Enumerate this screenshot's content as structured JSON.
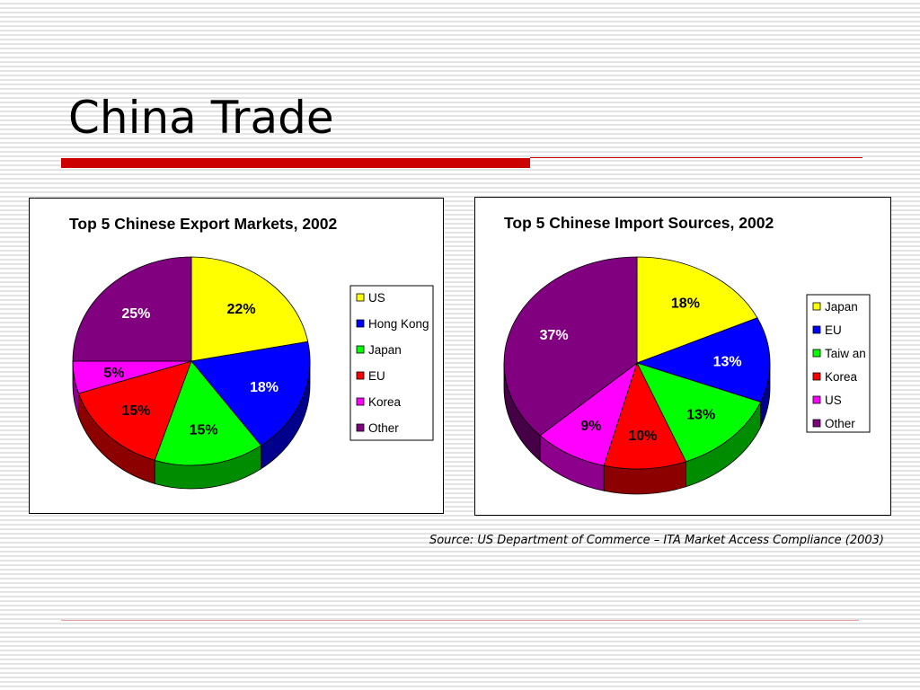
{
  "slide": {
    "title": "China Trade",
    "accent_color": "#cc0000",
    "source": "Source: US Department of Commerce – ITA Market Access Compliance (2003)"
  },
  "chart_data": [
    {
      "type": "pie",
      "title": "Top 5 Chinese Export Markets, 2002",
      "legend_position": "right",
      "slices": [
        {
          "label": "US",
          "value": 22,
          "display": "22%",
          "color": "#ffff00"
        },
        {
          "label": "Hong Kong",
          "value": 18,
          "display": "18%",
          "color": "#0000ff"
        },
        {
          "label": "Japan",
          "value": 15,
          "display": "15%",
          "color": "#00ff00"
        },
        {
          "label": "EU",
          "value": 15,
          "display": "15%",
          "color": "#ff0000"
        },
        {
          "label": "Korea",
          "value": 5,
          "display": "5%",
          "color": "#ff00ff"
        },
        {
          "label": "Other",
          "value": 25,
          "display": "25%",
          "color": "#800080"
        }
      ]
    },
    {
      "type": "pie",
      "title": "Top 5 Chinese Import Sources, 2002",
      "legend_position": "right",
      "slices": [
        {
          "label": "Japan",
          "value": 18,
          "display": "18%",
          "color": "#ffff00"
        },
        {
          "label": "EU",
          "value": 13,
          "display": "13%",
          "color": "#0000ff"
        },
        {
          "label": "Taiw an",
          "value": 13,
          "display": "13%",
          "color": "#00ff00"
        },
        {
          "label": "Korea",
          "value": 10,
          "display": "10%",
          "color": "#ff0000"
        },
        {
          "label": "US",
          "value": 9,
          "display": "9%",
          "color": "#ff00ff"
        },
        {
          "label": "Other",
          "value": 37,
          "display": "37%",
          "color": "#800080"
        }
      ]
    }
  ]
}
